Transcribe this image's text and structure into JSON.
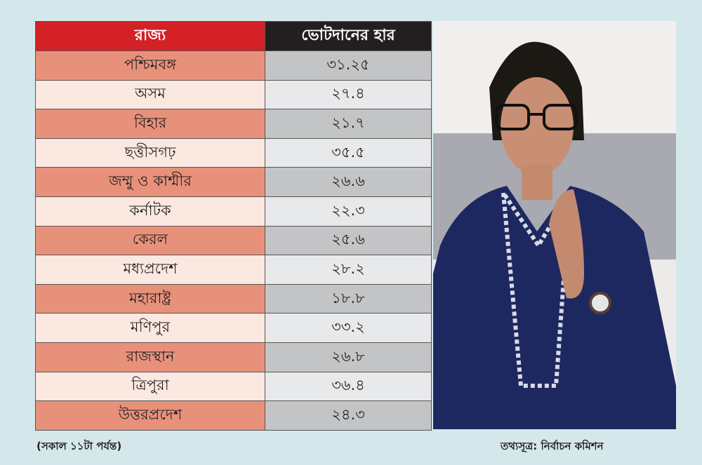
{
  "chart_data": {
    "type": "table",
    "columns": [
      "রাজ্য",
      "ভোটদানের হার"
    ],
    "rows": [
      {
        "state": "পশ্চিমবঙ্গ",
        "rate": "৩১.২৫"
      },
      {
        "state": "অসম",
        "rate": "২৭.৪"
      },
      {
        "state": "বিহার",
        "rate": "২১.৭"
      },
      {
        "state": "ছত্তীসগঢ়",
        "rate": "৩৫.৫"
      },
      {
        "state": "জম্মু ও কাশ্মীর",
        "rate": "২৬.৬"
      },
      {
        "state": "কর্নাটক",
        "rate": "২২.৩"
      },
      {
        "state": "কেরল",
        "rate": "২৫.৬"
      },
      {
        "state": "মধ্যপ্রদেশ",
        "rate": "২৮.২"
      },
      {
        "state": "মহারাষ্ট্র",
        "rate": "১৮.৮"
      },
      {
        "state": "মণিপুর",
        "rate": "৩৩.২"
      },
      {
        "state": "রাজস্থান",
        "rate": "২৬.৮"
      },
      {
        "state": "ত্রিপুরা",
        "rate": "৩৬.৪"
      },
      {
        "state": "উত্তরপ্রদেশ",
        "rate": "২৪.৩"
      }
    ]
  },
  "footer": {
    "note": "(সকাল ১১টা পর্যন্ত)",
    "source": "তথ্যসূত্র: নির্বাচন কমিশন"
  },
  "colors": {
    "header_state": "#d42027",
    "header_rate": "#231f20",
    "row_dark": "#e8917a",
    "row_light": "#fbe8e1",
    "background": "#d4e8ec"
  }
}
